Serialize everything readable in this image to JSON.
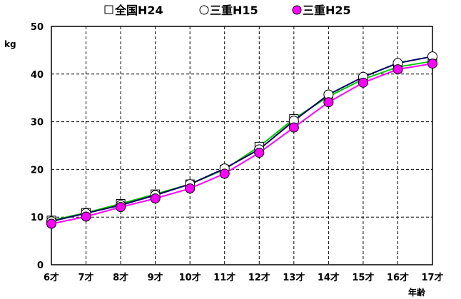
{
  "chart_data": {
    "type": "line",
    "categories": [
      "6才",
      "7才",
      "8才",
      "9才",
      "10才",
      "11才",
      "12才",
      "13才",
      "14才",
      "15才",
      "16才",
      "17才"
    ],
    "y_ticks": [
      0,
      10,
      20,
      30,
      40,
      50
    ],
    "ylim": [
      0,
      50
    ],
    "ylabel": "kg",
    "xlabel": "年齢",
    "grid": true,
    "legend_position": "top",
    "series": [
      {
        "name": "全国H24",
        "marker": "square",
        "line_color": "#00cc00",
        "marker_fill": "#ffffff",
        "values": [
          9.3,
          10.9,
          12.8,
          14.8,
          16.9,
          20.0,
          24.8,
          30.6,
          35.3,
          38.9,
          41.5,
          42.7
        ]
      },
      {
        "name": "三重H15",
        "marker": "circle",
        "line_color": "#000066",
        "marker_fill": "#ffffff",
        "values": [
          9.1,
          10.8,
          12.5,
          14.6,
          16.9,
          20.2,
          24.2,
          30.2,
          35.7,
          39.4,
          42.3,
          43.7
        ]
      },
      {
        "name": "三重H25",
        "marker": "circle",
        "line_color": "#ff00ff",
        "marker_fill": "#ff00ff",
        "values": [
          8.6,
          10.1,
          12.1,
          13.9,
          16.0,
          19.1,
          23.5,
          28.8,
          34.1,
          38.2,
          41.0,
          42.2
        ]
      }
    ]
  }
}
